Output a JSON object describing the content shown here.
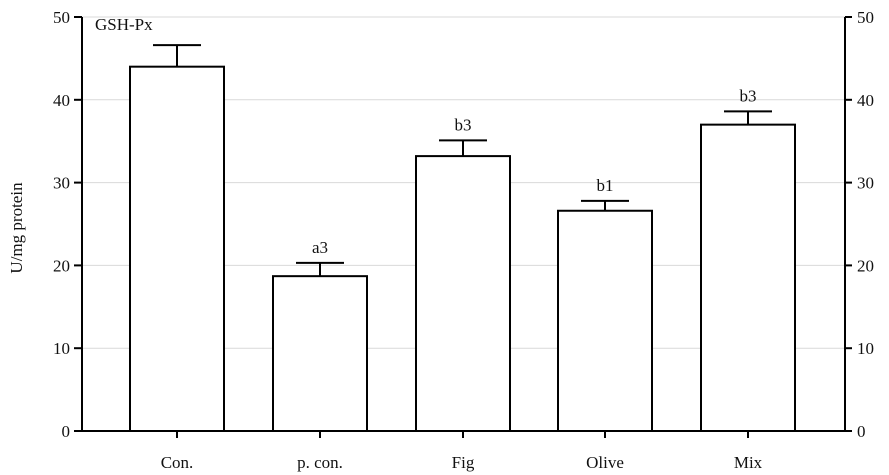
{
  "chart_data": {
    "type": "bar",
    "title": "GSH-Px",
    "xlabel": "",
    "ylabel": "U/mg protein",
    "ylim": [
      0,
      50
    ],
    "yticks": [
      0,
      10,
      20,
      30,
      40,
      50
    ],
    "secondary_yaxis": {
      "ylim": [
        0,
        50
      ],
      "yticks": [
        0,
        10,
        20,
        30,
        40,
        50
      ]
    },
    "grid": {
      "horizontal": true,
      "color": "#d9d9d9"
    },
    "legend": null,
    "categories": [
      "Con.",
      "p. con.",
      "Fig",
      "Olive",
      "Mix"
    ],
    "values": [
      44.0,
      18.7,
      33.2,
      26.6,
      37.0
    ],
    "error_upper": [
      2.6,
      1.6,
      1.9,
      1.2,
      1.6
    ],
    "annotations": [
      "",
      "a3",
      "b3",
      "b1",
      "b3"
    ],
    "bar_fill": "#ffffff",
    "bar_stroke": "#000000"
  },
  "labels": {
    "panel_title": "GSH-Px",
    "y_axis_title": "U/mg protein",
    "y_ticks": [
      "0",
      "10",
      "20",
      "30",
      "40",
      "50"
    ]
  }
}
